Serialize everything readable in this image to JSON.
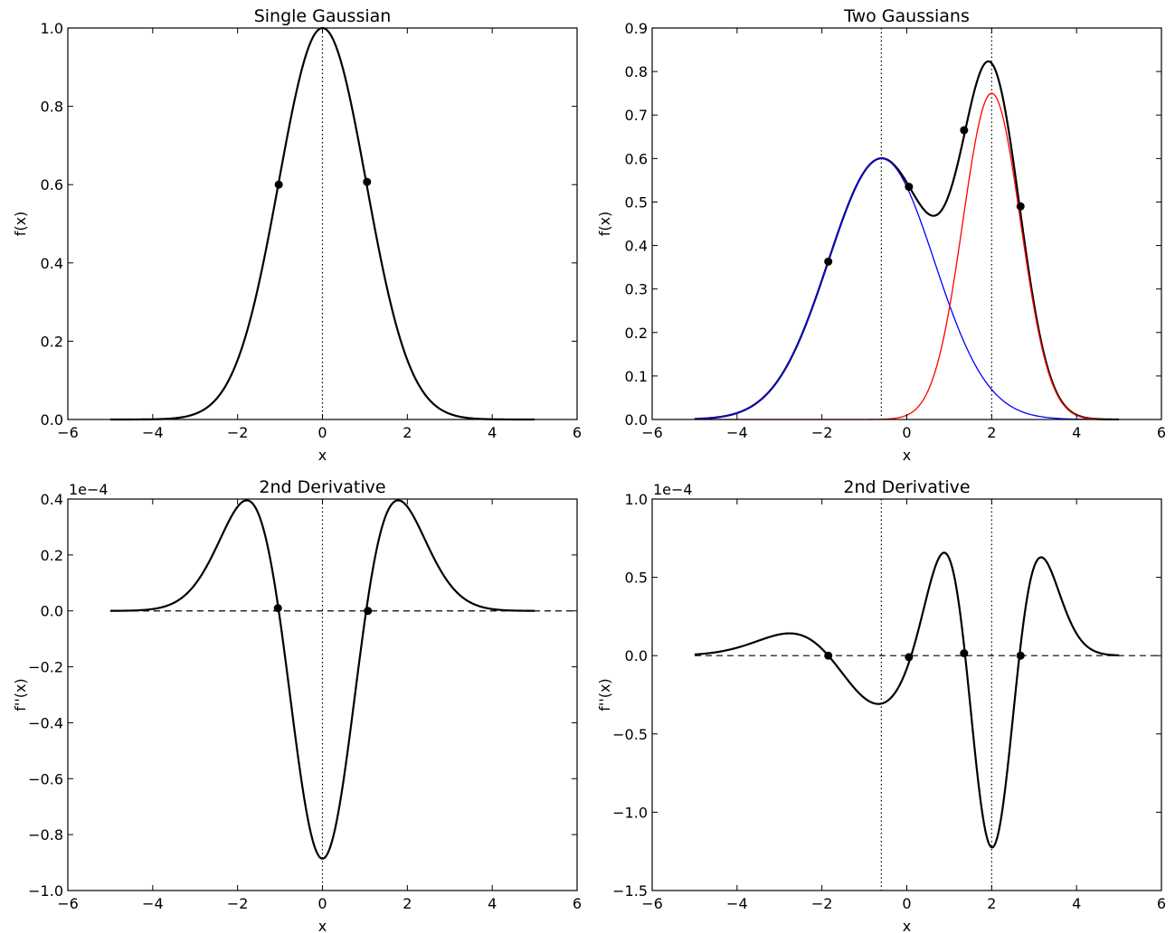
{
  "chart_data": [
    {
      "type": "line",
      "title": "Single Gaussian",
      "xlabel": "x",
      "ylabel": "f(x)",
      "xlim": [
        -6,
        6
      ],
      "ylim": [
        0,
        1.0
      ],
      "xticks": [
        -6,
        -4,
        -2,
        0,
        2,
        4,
        6
      ],
      "yticks": [
        0.0,
        0.2,
        0.4,
        0.6,
        0.8,
        1.0
      ],
      "xtick_labels": [
        "−6",
        "−4",
        "−2",
        "0",
        "2",
        "4",
        "6"
      ],
      "ytick_labels": [
        "0.0",
        "0.2",
        "0.4",
        "0.6",
        "0.8",
        "1.0"
      ],
      "offset_text": "",
      "grid": false,
      "vlines": [
        0
      ],
      "hline": null,
      "series": [
        {
          "color": "#000000",
          "width": 2.2,
          "model": "gauss",
          "components": [
            {
              "a": 1.0,
              "mu": 0.0,
              "sigma": 1.03
            }
          ],
          "x": [
            -5,
            5
          ]
        }
      ],
      "points": {
        "x": [
          -1.03,
          1.05
        ],
        "y": [
          0.6,
          0.607
        ]
      }
    },
    {
      "type": "line",
      "title": "Two Gaussians",
      "xlabel": "x",
      "ylabel": "f(x)",
      "xlim": [
        -6,
        6
      ],
      "ylim": [
        0,
        0.9
      ],
      "xticks": [
        -6,
        -4,
        -2,
        0,
        2,
        4,
        6
      ],
      "yticks": [
        0.0,
        0.1,
        0.2,
        0.3,
        0.4,
        0.5,
        0.6,
        0.7,
        0.8,
        0.9
      ],
      "xtick_labels": [
        "−6",
        "−4",
        "−2",
        "0",
        "2",
        "4",
        "6"
      ],
      "ytick_labels": [
        "0.0",
        "0.1",
        "0.2",
        "0.3",
        "0.4",
        "0.5",
        "0.6",
        "0.7",
        "0.8",
        "0.9"
      ],
      "offset_text": "",
      "grid": false,
      "vlines": [
        -0.6,
        2.0
      ],
      "hline": null,
      "series": [
        {
          "color": "#000000",
          "width": 2.2,
          "model": "gauss",
          "components": [
            {
              "a": 0.6,
              "mu": -0.6,
              "sigma": 1.25
            },
            {
              "a": 0.75,
              "mu": 2.0,
              "sigma": 0.68
            }
          ],
          "x": [
            -5,
            5
          ]
        },
        {
          "color": "#0000ff",
          "width": 1.3,
          "model": "gauss",
          "components": [
            {
              "a": 0.6,
              "mu": -0.6,
              "sigma": 1.25
            }
          ],
          "x": [
            -5,
            5
          ]
        },
        {
          "color": "#ff0000",
          "width": 1.3,
          "model": "gauss",
          "components": [
            {
              "a": 0.75,
              "mu": 2.0,
              "sigma": 0.68
            }
          ],
          "x": [
            -5,
            5
          ]
        }
      ],
      "points": {
        "x": [
          -1.85,
          0.05,
          1.35,
          2.68
        ],
        "y": [
          0.363,
          0.535,
          0.665,
          0.49
        ]
      }
    },
    {
      "type": "line",
      "title": "2nd Derivative",
      "xlabel": "x",
      "ylabel": "f''(x)",
      "xlim": [
        -6,
        6
      ],
      "ylim": [
        -1.0,
        0.4
      ],
      "xticks": [
        -6,
        -4,
        -2,
        0,
        2,
        4,
        6
      ],
      "yticks": [
        -1.0,
        -0.8,
        -0.6,
        -0.4,
        -0.2,
        0.0,
        0.2,
        0.4
      ],
      "xtick_labels": [
        "−6",
        "−4",
        "−2",
        "0",
        "2",
        "4",
        "6"
      ],
      "ytick_labels": [
        "−1.0",
        "−0.8",
        "−0.6",
        "−0.4",
        "−0.2",
        "0.0",
        "0.2",
        "0.4"
      ],
      "offset_text": "1e−4",
      "grid": false,
      "vlines": [
        0
      ],
      "hline": 0,
      "series": [
        {
          "color": "#000000",
          "width": 2.2,
          "model": "d2gauss",
          "components": [
            {
              "a": 1.0,
              "mu": 0.0,
              "sigma": 1.03
            }
          ],
          "scale": 0.94,
          "x": [
            -5,
            5
          ]
        }
      ],
      "points": {
        "x": [
          -1.05,
          1.07
        ],
        "y": [
          0.01,
          0.0
        ]
      }
    },
    {
      "type": "line",
      "title": "2nd Derivative",
      "xlabel": "x",
      "ylabel": "f''(x)",
      "xlim": [
        -6,
        6
      ],
      "ylim": [
        -1.5,
        1.0
      ],
      "xticks": [
        -6,
        -4,
        -2,
        0,
        2,
        4,
        6
      ],
      "yticks": [
        -1.5,
        -1.0,
        -0.5,
        0.0,
        0.5,
        1.0
      ],
      "xtick_labels": [
        "−6",
        "−4",
        "−2",
        "0",
        "2",
        "4",
        "6"
      ],
      "ytick_labels": [
        "−1.5",
        "−1.0",
        "−0.5",
        "0.0",
        "0.5",
        "1.0"
      ],
      "offset_text": "1e−4",
      "grid": false,
      "vlines": [
        -0.6,
        2.0
      ],
      "hline": 0,
      "series": [
        {
          "color": "#000000",
          "width": 2.2,
          "model": "d2gauss",
          "components": [
            {
              "a": 0.6,
              "mu": -0.6,
              "sigma": 1.25
            },
            {
              "a": 0.75,
              "mu": 2.0,
              "sigma": 0.68
            }
          ],
          "scale": 0.83,
          "x": [
            -5,
            5
          ]
        }
      ],
      "points": {
        "x": [
          -1.85,
          0.05,
          1.35,
          2.68
        ],
        "y": [
          0.0,
          -0.01,
          0.015,
          0.0
        ]
      }
    }
  ]
}
